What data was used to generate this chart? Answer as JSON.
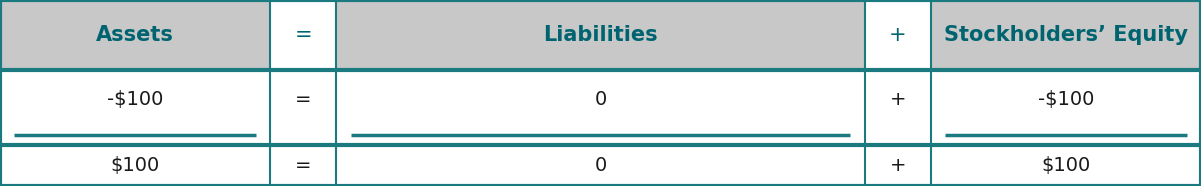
{
  "header_labels": [
    "Assets",
    "=",
    "Liabilities",
    "+",
    "Stockholders’ Equity"
  ],
  "row1_labels": [
    "-$100",
    "=",
    "0",
    "+",
    "-$100"
  ],
  "row2_labels": [
    "$100",
    "=",
    "0",
    "+",
    "$100"
  ],
  "header_bg": "#c8c8c8",
  "operator_header_bg": "#ffffff",
  "body_bg": "#ffffff",
  "outer_border_color": "#1a7a80",
  "header_text_color": "#006470",
  "body_text_color": "#1a1a1a",
  "underline_color": "#1a7a80",
  "figsize": [
    12.01,
    1.86
  ],
  "dpi": 100
}
